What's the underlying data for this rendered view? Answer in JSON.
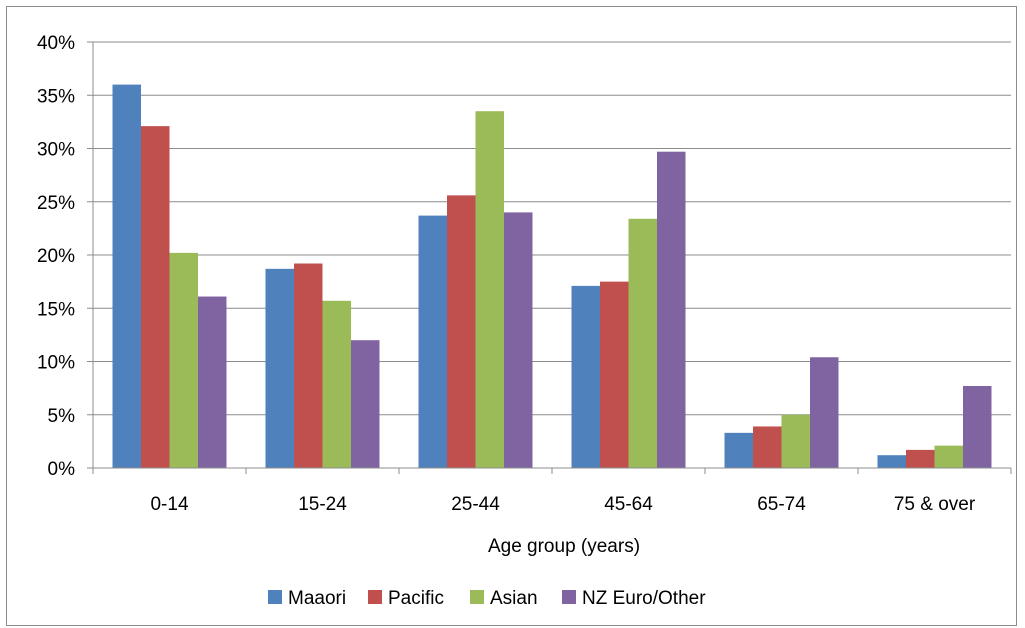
{
  "chart_data": {
    "type": "bar",
    "title": "",
    "xlabel": "Age group (years)",
    "ylabel": "",
    "categories": [
      "0-14",
      "15-24",
      "25-44",
      "45-64",
      "65-74",
      "75 & over"
    ],
    "series": [
      {
        "name": "Maaori",
        "color": "#4f81bd",
        "values": [
          36.0,
          18.7,
          23.7,
          17.1,
          3.3,
          1.2
        ]
      },
      {
        "name": "Pacific",
        "color": "#c0504d",
        "values": [
          32.1,
          19.2,
          25.6,
          17.5,
          3.9,
          1.7
        ]
      },
      {
        "name": "Asian",
        "color": "#9bbb59",
        "values": [
          20.2,
          15.7,
          33.5,
          23.4,
          5.0,
          2.1
        ]
      },
      {
        "name": "NZ Euro/Other",
        "color": "#8064a2",
        "values": [
          16.1,
          12.0,
          24.0,
          29.7,
          10.4,
          7.7
        ]
      }
    ],
    "ylim": [
      0,
      40
    ],
    "yticks": [
      "0%",
      "5%",
      "10%",
      "15%",
      "20%",
      "25%",
      "30%",
      "35%",
      "40%"
    ],
    "grid": true,
    "legend_position": "bottom"
  }
}
